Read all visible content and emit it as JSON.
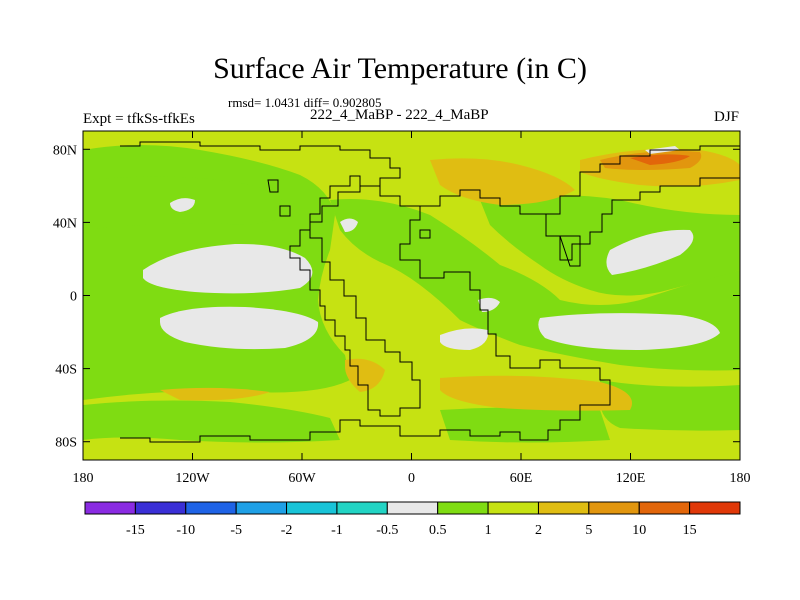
{
  "title": "Surface Air Temperature (in C)",
  "stats": "rmsd= 1.0431 diff= 0.902805",
  "subtitle": "222_4_MaBP - 222_4_MaBP",
  "expt_label": "Expt = tfkSs-tfkEs",
  "season": "DJF",
  "lat_ticks": [
    "80N",
    "40N",
    "0",
    "40S",
    "80S"
  ],
  "lon_ticks": [
    "180",
    "120W",
    "60W",
    "0",
    "60E",
    "120E",
    "180"
  ],
  "colorbar": {
    "colors": [
      "#8a2be2",
      "#3a2fd6",
      "#1f63e6",
      "#1fa0e6",
      "#19c4d8",
      "#22d4c4",
      "#e8e8e8",
      "#7fdc12",
      "#c6e212",
      "#e0bd12",
      "#e2960e",
      "#e2660a",
      "#e03808"
    ],
    "labels": [
      "-15",
      "-10",
      "-5",
      "-2",
      "-1",
      "-0.5",
      "0.5",
      "1",
      "2",
      "5",
      "10",
      "15"
    ]
  },
  "map_colors": {
    "green": "#7fdc12",
    "yellow_green": "#c6e212",
    "orange": "#e0bd12",
    "dark_orange": "#e2960e",
    "red_orange": "#e2660a",
    "white": "#e8e8e8"
  }
}
